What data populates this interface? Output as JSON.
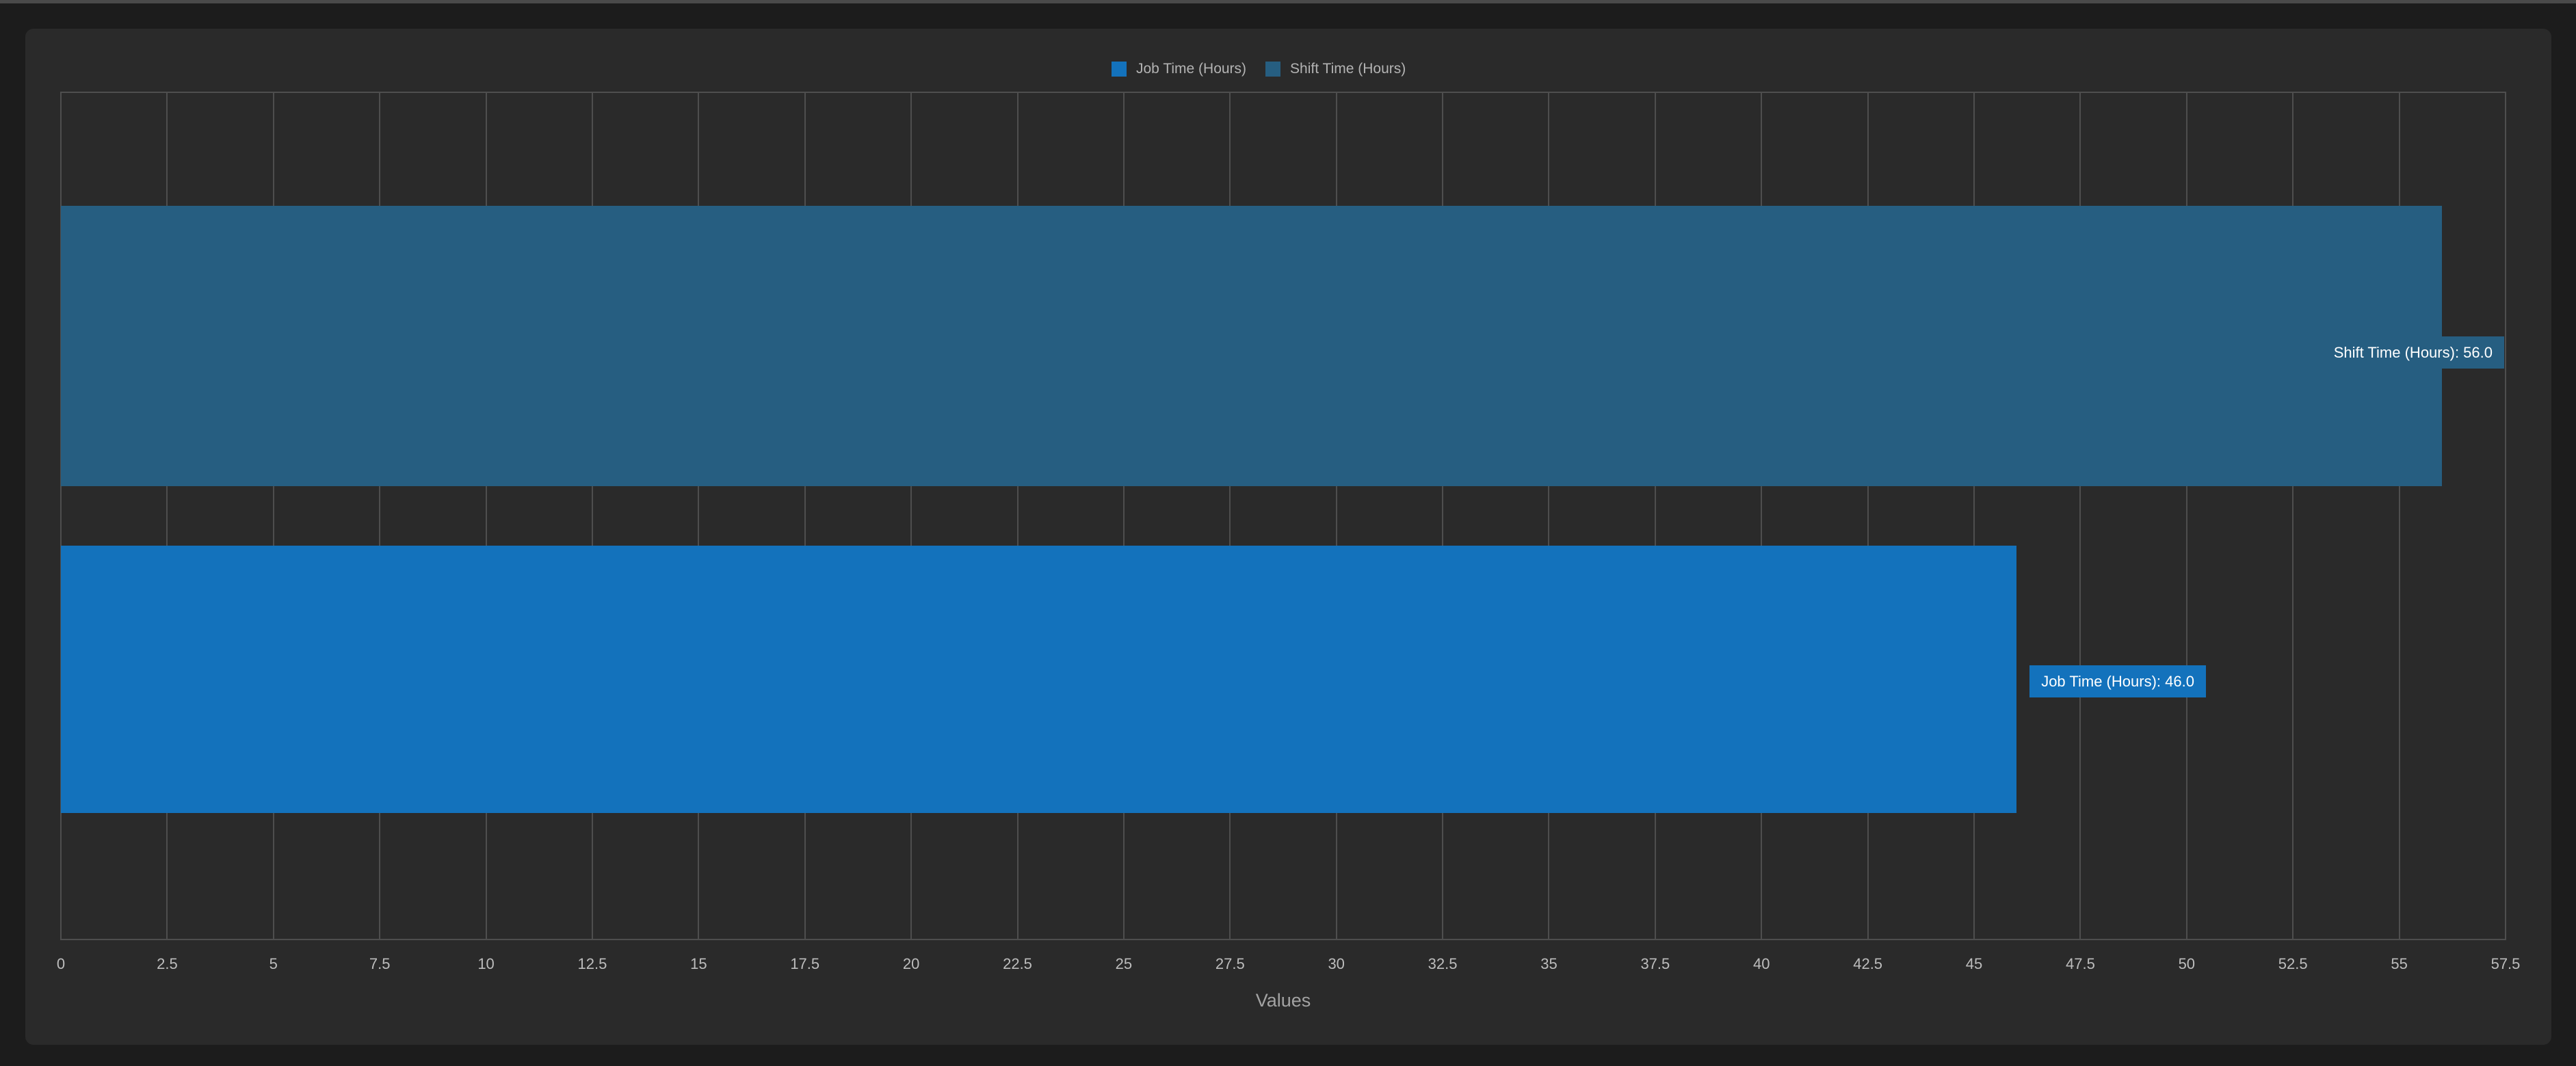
{
  "colors": {
    "background": "#1c1c1c",
    "top_strip": "#4a4a4a",
    "card": "#2a2a2a",
    "gridline": "#4e4e4e",
    "tick_text": "#bdbdbd",
    "axis_label_text": "#a3a3a3",
    "legend_text": "#b3b3b3",
    "bar_label_text": "#ffffff",
    "job_blue": "#1372bc",
    "shift_teal": "#265e81"
  },
  "legend": {
    "items": [
      {
        "label": "Job Time (Hours)",
        "color": "#1372bc"
      },
      {
        "label": "Shift Time (Hours)",
        "color": "#265e81"
      }
    ]
  },
  "chart_data": {
    "type": "bar",
    "orientation": "horizontal",
    "title": "",
    "xlabel": "Values",
    "xlim": [
      0,
      57.5
    ],
    "x_ticks": [
      "0",
      "2.5",
      "5",
      "7.5",
      "10",
      "12.5",
      "15",
      "17.5",
      "20",
      "22.5",
      "25",
      "27.5",
      "30",
      "32.5",
      "35",
      "37.5",
      "40",
      "42.5",
      "45",
      "47.5",
      "50",
      "52.5",
      "55",
      "57.5"
    ],
    "grid": "vertical",
    "legend_position": "top-center",
    "series": [
      {
        "name": "Shift Time (Hours)",
        "value": 56.0,
        "row": "top",
        "color": "#265e81",
        "data_label": "Shift Time (Hours): 56.0"
      },
      {
        "name": "Job Time (Hours)",
        "value": 46.0,
        "row": "bottom",
        "color": "#1372bc",
        "data_label": "Job Time (Hours): 46.0"
      }
    ]
  }
}
